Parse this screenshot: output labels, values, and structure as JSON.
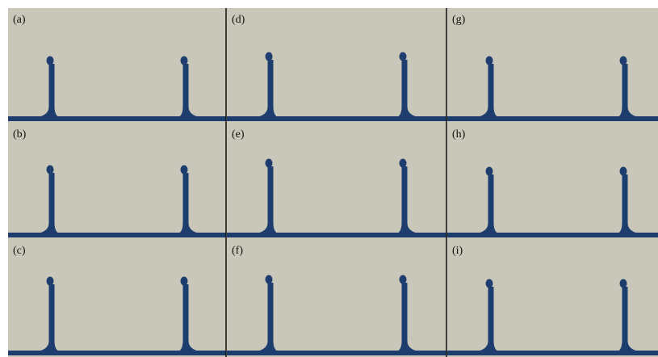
{
  "panels": [
    {
      "label": "(a)"
    },
    {
      "label": "(b)"
    },
    {
      "label": "(c)"
    },
    {
      "label": "(d)"
    },
    {
      "label": "(e)"
    },
    {
      "label": "(f)"
    },
    {
      "label": "(g)"
    },
    {
      "label": "(h)"
    },
    {
      "label": "(i)"
    }
  ]
}
